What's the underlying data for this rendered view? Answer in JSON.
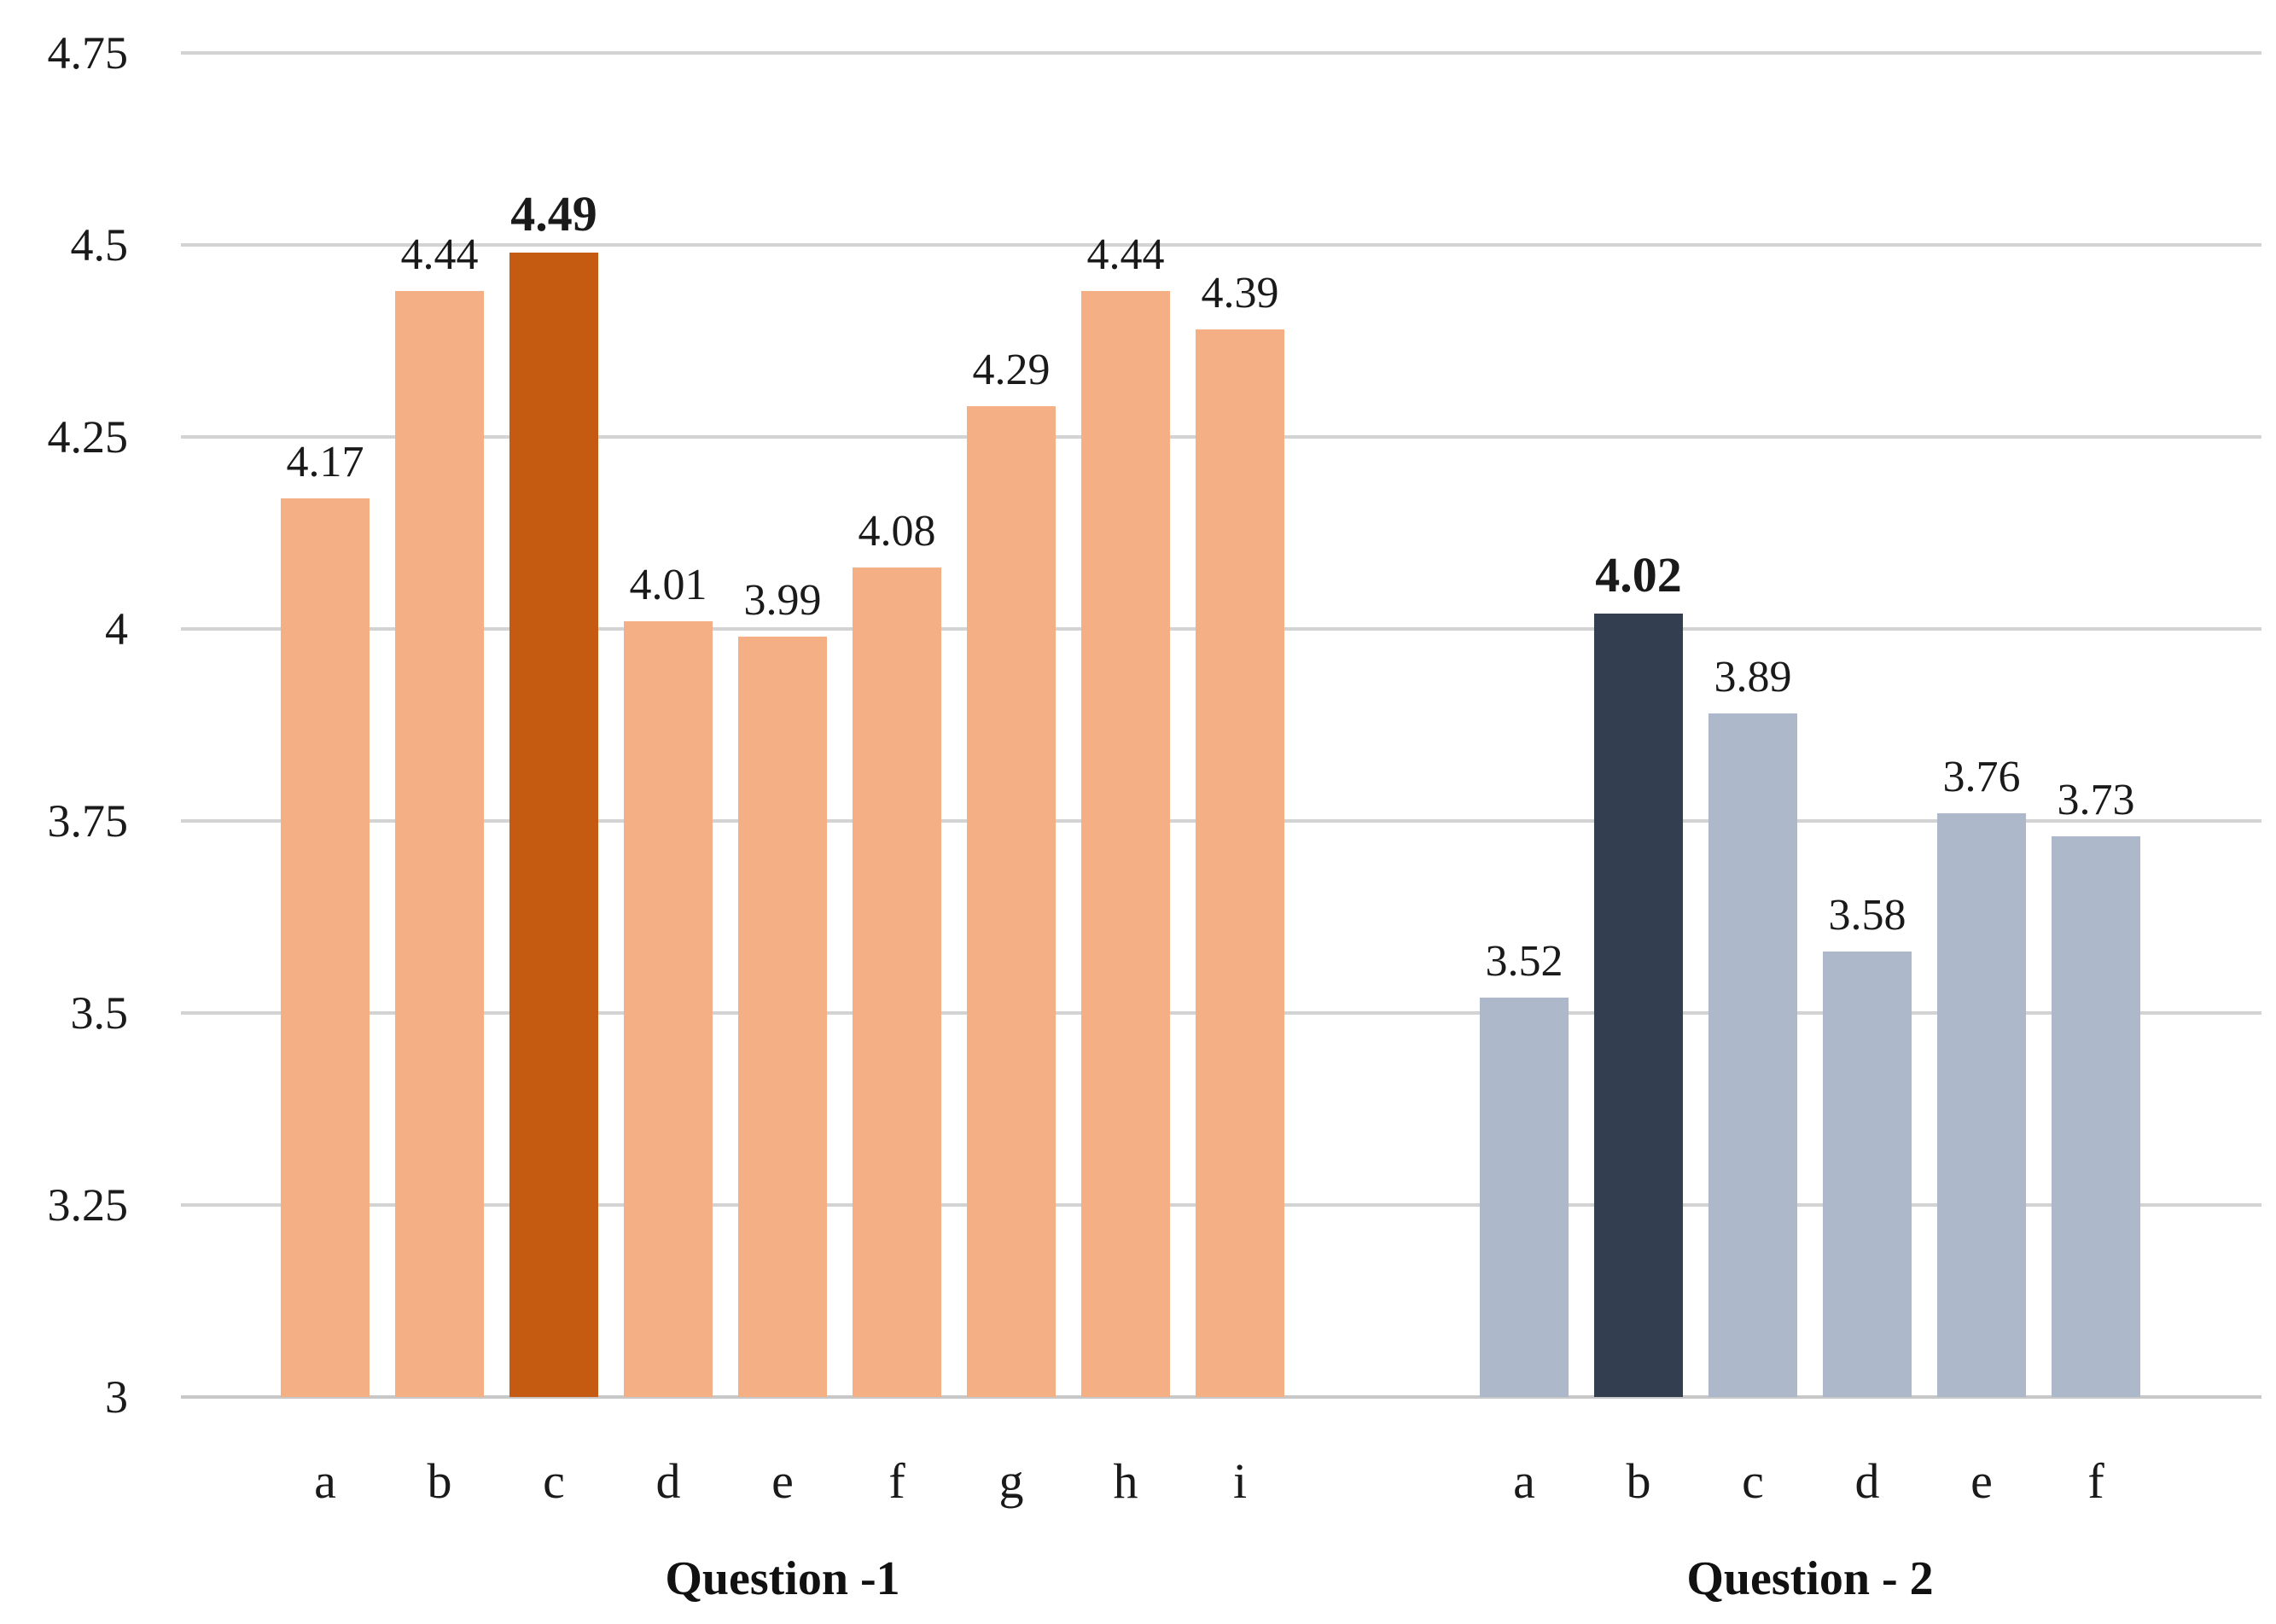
{
  "chart_data": {
    "type": "bar",
    "title": "",
    "xlabel": "",
    "ylabel": "",
    "ylim": [
      3,
      4.75
    ],
    "yticks": [
      "3",
      "3.25",
      "3.5",
      "3.75",
      "4",
      "4.25",
      "4.5",
      "4.75"
    ],
    "ytick_values": [
      3,
      3.25,
      3.5,
      3.75,
      4,
      4.25,
      4.5,
      4.75
    ],
    "grid": true,
    "groups": [
      {
        "name": "Question -1",
        "categories": [
          "a",
          "b",
          "c",
          "d",
          "e",
          "f",
          "g",
          "h",
          "i"
        ],
        "values": [
          4.17,
          4.44,
          4.49,
          4.01,
          3.99,
          4.08,
          4.29,
          4.44,
          4.39
        ],
        "labels": [
          "4.17",
          "4.44",
          "4.49",
          "4.01",
          "3.99",
          "4.08",
          "4.29",
          "4.44",
          "4.39"
        ],
        "highlight_index": 2,
        "color": "#F4B084",
        "highlight_color": "#C55A11"
      },
      {
        "name": "Question - 2",
        "categories": [
          "a",
          "b",
          "c",
          "d",
          "e",
          "f"
        ],
        "values": [
          3.52,
          4.02,
          3.89,
          3.58,
          3.76,
          3.73
        ],
        "labels": [
          "3.52",
          "4.02",
          "3.89",
          "3.58",
          "3.76",
          "3.73"
        ],
        "highlight_index": 1,
        "color": "#ADB9CA",
        "highlight_color": "#333F50"
      }
    ]
  }
}
